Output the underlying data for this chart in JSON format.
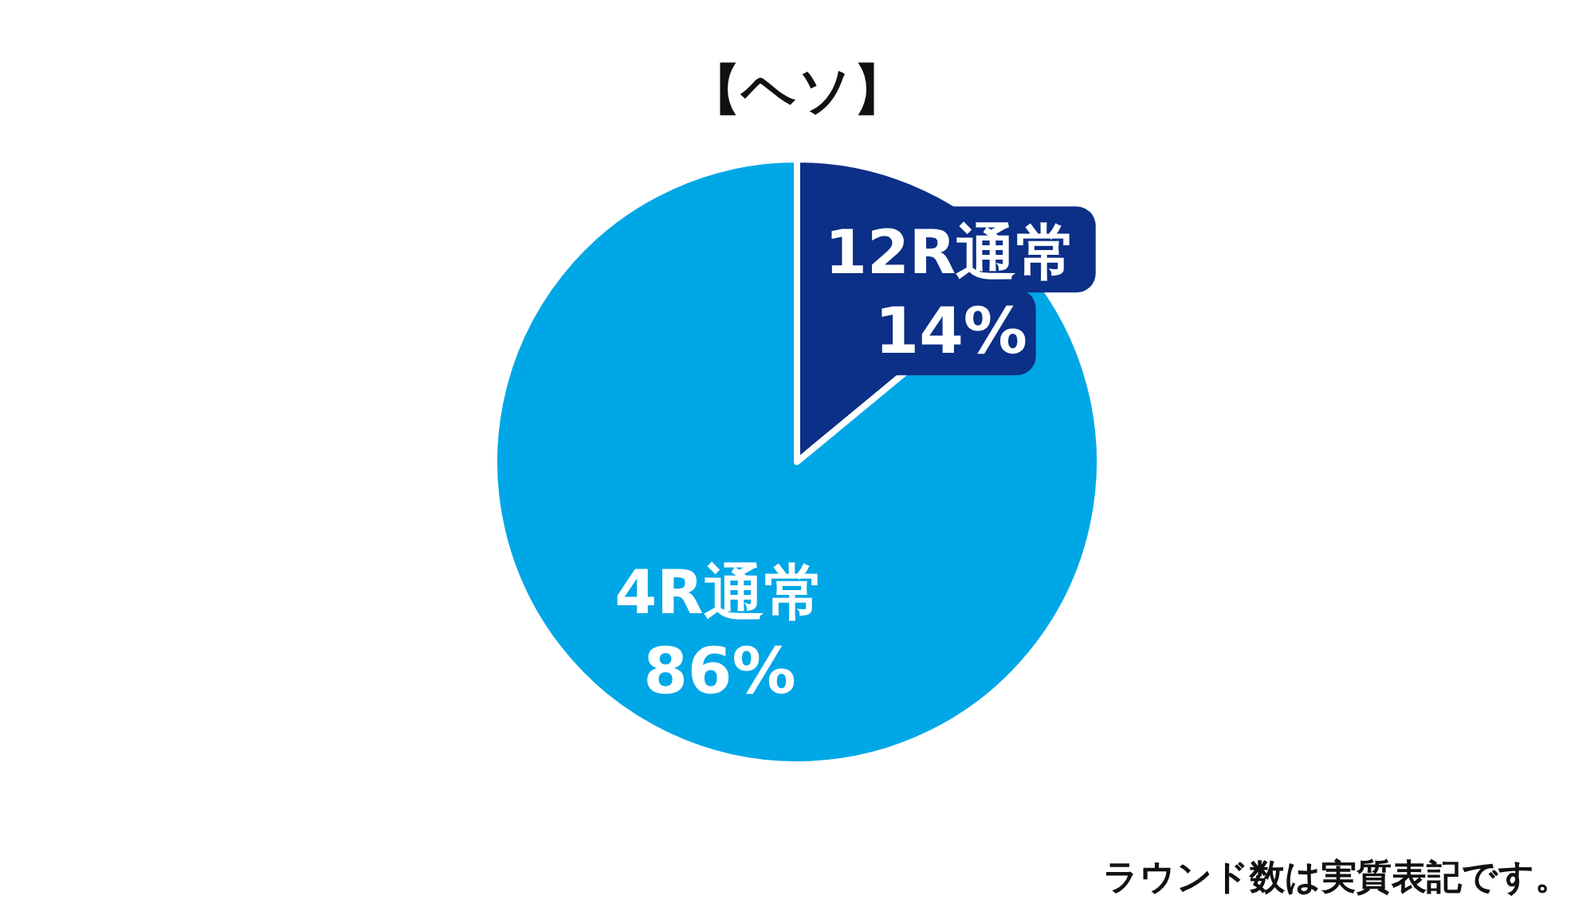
{
  "chart_data": {
    "type": "pie",
    "title": "【ヘソ】",
    "categories": [
      "12R通常",
      "4R通常"
    ],
    "values": [
      14,
      86
    ],
    "colors": [
      "#0c2f87",
      "#00a7e6"
    ],
    "value_labels": [
      "14%",
      "86%"
    ],
    "annotations": [
      "ラウンド数は実質表記です。"
    ]
  }
}
